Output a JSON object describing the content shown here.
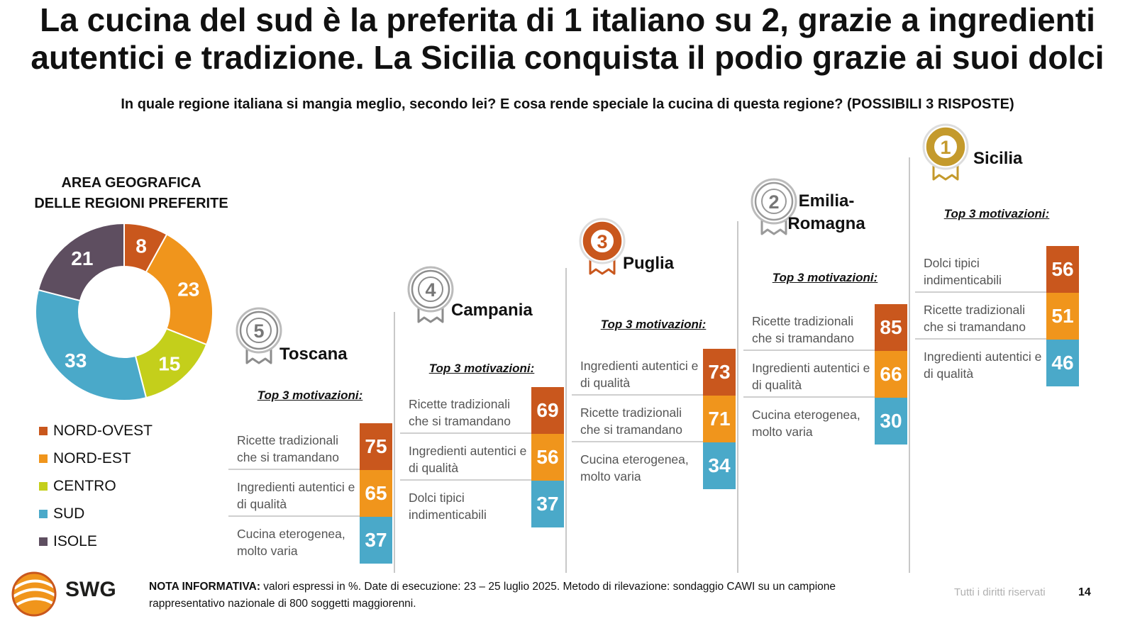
{
  "title_line1": "La cucina del sud è la preferita di 1 italiano su 2, grazie a ingredienti",
  "title_line2": "autentici e tradizione. La Sicilia conquista il podio grazie ai suoi dolci",
  "question": "In quale regione italiana si mangia meglio, secondo lei? E cosa rende speciale la cucina di questa regione? (POSSIBILI 3 RISPOSTE)",
  "chart_data": [
    {
      "type": "pie",
      "title": "AREA GEOGRAFICA DELLE REGIONI PREFERITE",
      "title_line1": "AREA GEOGRAFICA",
      "title_line2": "DELLE REGIONI PREFERITE",
      "slices": [
        {
          "name": "NORD-OVEST",
          "value": 8,
          "color": "#c9571d"
        },
        {
          "name": "NORD-EST",
          "value": 23,
          "color": "#f0951c"
        },
        {
          "name": "CENTRO",
          "value": 15,
          "color": "#c4cf1b"
        },
        {
          "name": "SUD",
          "value": 33,
          "color": "#4aa9c9"
        },
        {
          "name": "ISOLE",
          "value": 21,
          "color": "#5e4e60"
        }
      ]
    },
    {
      "type": "table",
      "heading": "Top 3 motivazioni:",
      "regions": [
        {
          "rank": "5",
          "name": "Toscana",
          "items": [
            {
              "label": "Ricette tradizionali che si tramandano",
              "value": 75,
              "color": "#c9571d"
            },
            {
              "label": "Ingredienti autentici e di qualità",
              "value": 65,
              "color": "#f0951c"
            },
            {
              "label": "Cucina eterogenea, molto varia",
              "value": 37,
              "color": "#4aa9c9"
            }
          ]
        },
        {
          "rank": "4",
          "name": "Campania",
          "items": [
            {
              "label": "Ricette tradizionali che si tramandano",
              "value": 69,
              "color": "#c9571d"
            },
            {
              "label": "Ingredienti autentici e di qualità",
              "value": 56,
              "color": "#f0951c"
            },
            {
              "label": "Dolci tipici indimenticabili",
              "value": 37,
              "color": "#4aa9c9"
            }
          ]
        },
        {
          "rank": "3",
          "name": "Puglia",
          "items": [
            {
              "label": "Ingredienti autentici e di qualità",
              "value": 73,
              "color": "#c9571d"
            },
            {
              "label": "Ricette tradizionali che si tramandano",
              "value": 71,
              "color": "#f0951c"
            },
            {
              "label": "Cucina eterogenea, molto varia",
              "value": 34,
              "color": "#4aa9c9"
            }
          ]
        },
        {
          "rank": "2",
          "name": "Emilia-Romagna",
          "name_line1": "Emilia-",
          "name_line2": "Romagna",
          "items": [
            {
              "label": "Ricette tradizionali che si tramandano",
              "value": 85,
              "color": "#c9571d"
            },
            {
              "label": "Ingredienti autentici e di qualità",
              "value": 66,
              "color": "#f0951c"
            },
            {
              "label": "Cucina eterogenea, molto varia",
              "value": 30,
              "color": "#4aa9c9"
            }
          ]
        },
        {
          "rank": "1",
          "name": "Sicilia",
          "items": [
            {
              "label": "Dolci tipici indimenticabili",
              "value": 56,
              "color": "#c9571d"
            },
            {
              "label": "Ricette tradizionali che si tramandano",
              "value": 51,
              "color": "#f0951c"
            },
            {
              "label": "Ingredienti autentici e di qualità",
              "value": 46,
              "color": "#4aa9c9"
            }
          ]
        }
      ]
    }
  ],
  "medal_colors": {
    "1": "#c49a2c",
    "2": "#9a9a9a",
    "3": "#c9571d",
    "4": "#8c8c8c",
    "5": "#8c8c8c"
  },
  "footer": {
    "note_label": "NOTA INFORMATIVA:",
    "note_text": " valori espressi in %. Date di esecuzione: 23 – 25 luglio 2025. Metodo di rilevazione: sondaggio CAWI su un campione rappresentativo nazionale di 800 soggetti maggiorenni.",
    "rights": "Tutti i diritti riservati",
    "page": "14",
    "logo_text": "SWG"
  }
}
